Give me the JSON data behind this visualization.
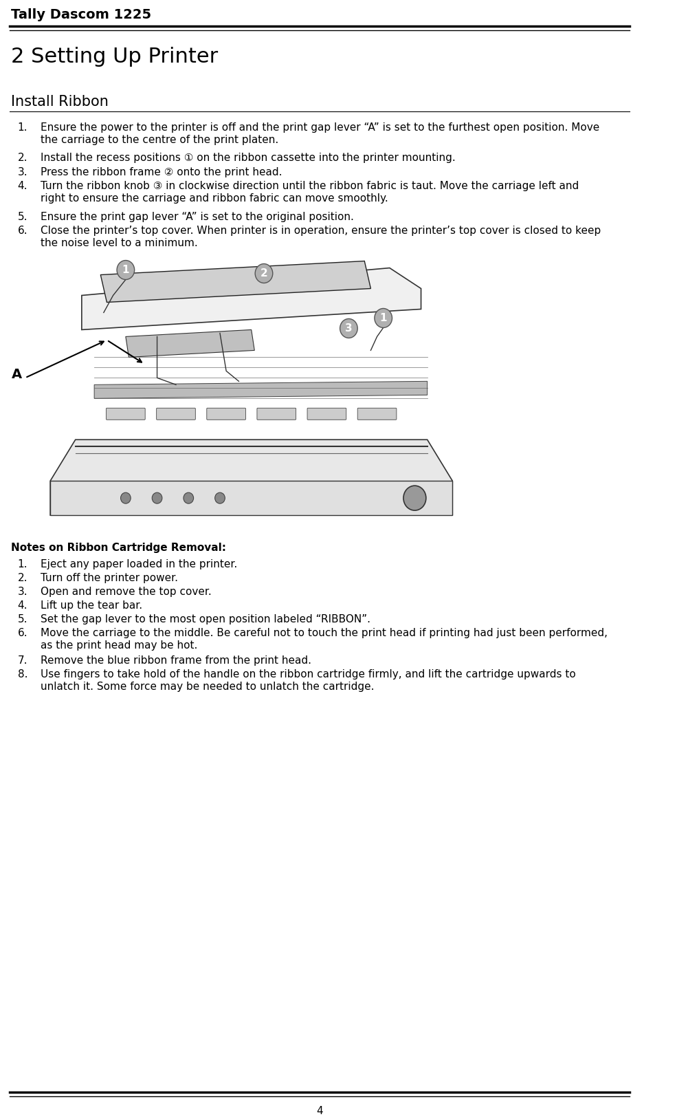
{
  "page_title": "Tally Dascom 1225",
  "chapter_title": "2 Setting Up Printer",
  "section_title": "Install Ribbon",
  "install_steps": [
    "Ensure the power to the printer is off and the print gap lever “A” is set to the furthest open position. Move the carriage to the centre of the print platen.",
    "Install the recess positions ① on the ribbon cassette into the printer mounting.",
    "Press the ribbon frame ② onto the print head.",
    "Turn the ribbon knob ③ in clockwise direction until the ribbon fabric is taut. Move the carriage left and right to ensure the carriage and ribbon fabric can move smoothly.",
    "Ensure the print gap lever “A” is set to the original position.",
    "Close the printer’s top cover. When printer is in operation, ensure the printer’s top cover is closed to keep the noise level to a minimum."
  ],
  "notes_title": "Notes on Ribbon Cartridge Removal:",
  "notes_steps": [
    "Eject any paper loaded in the printer.",
    "Turn off the printer power.",
    "Open and remove the top cover.",
    "Lift up the tear bar.",
    "Set the gap lever to the most open position labeled “RIBBON”.",
    "Move the carriage to the middle. Be careful not to touch the print head if printing had just been performed, as the print head may be hot.",
    "Remove the blue ribbon frame from the print head.",
    "Use fingers to take hold of the handle on the ribbon cartridge firmly, and lift the cartridge upwards to unlatch it. Some force may be needed to unlatch the cartridge."
  ],
  "page_number": "4",
  "bg_color": "#ffffff",
  "text_color": "#000000",
  "header_line_color": "#000000",
  "footer_line_color": "#000000"
}
